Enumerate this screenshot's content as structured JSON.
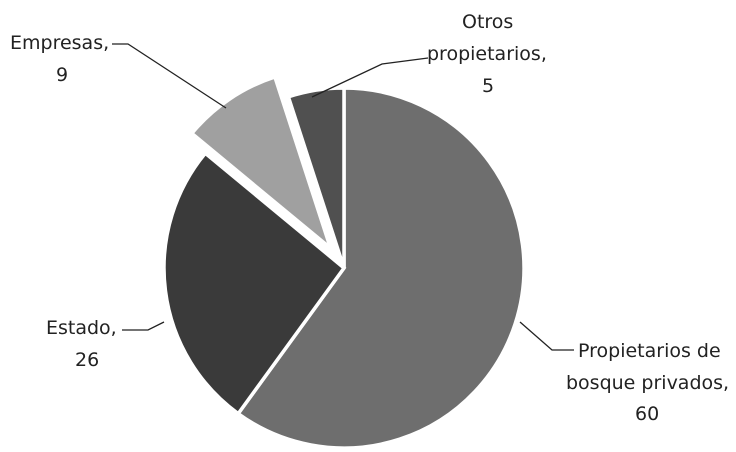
{
  "chart_data": {
    "type": "pie",
    "slices": [
      {
        "label_lines": [
          "Propietarios de",
          "bosque privados,",
          "60"
        ],
        "value": 60,
        "color": "#6e6e6e"
      },
      {
        "label_lines": [
          "Estado,",
          "26"
        ],
        "value": 26,
        "color": "#3a3a3a"
      },
      {
        "label_lines": [
          "Empresas,",
          "9"
        ],
        "value": 9,
        "color": "#a0a0a0",
        "exploded": true
      },
      {
        "label_lines": [
          "Otros",
          "propietarios,",
          "5"
        ],
        "value": 5,
        "color": "#505050"
      }
    ],
    "start_angle_deg": 0,
    "direction": "clockwise",
    "legend": "none"
  }
}
